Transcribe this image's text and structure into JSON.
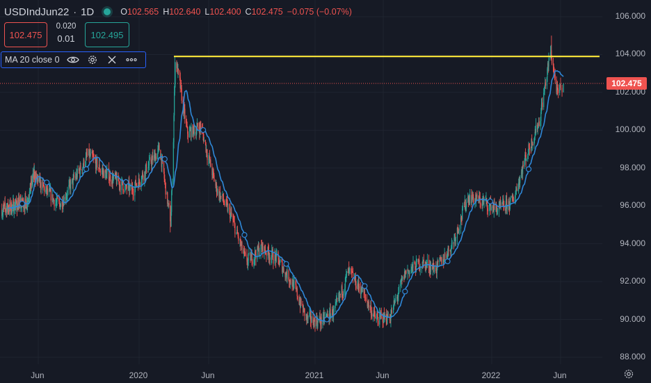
{
  "header": {
    "symbol": "USDIndJun22",
    "interval": "1D",
    "open_label": "O",
    "open": "102.565",
    "high_label": "H",
    "high": "102.640",
    "low_label": "L",
    "low": "102.400",
    "close_label": "C",
    "close": "102.475",
    "change": "−0.075 (−0.07%)"
  },
  "trade": {
    "sell_price": "102.475",
    "spread_top": "0.020",
    "spread_bottom": "0.01",
    "buy_price": "102.495"
  },
  "indicator": {
    "label": "MA 20 close 0",
    "icons": [
      "eye-icon",
      "gear-icon",
      "close-icon",
      "more-icon"
    ]
  },
  "current_price_tag": "102.475",
  "colors": {
    "background": "#161a25",
    "up": "#26a69a",
    "down": "#ef5350",
    "ma": "#2f88d8",
    "resistance": "#ffeb3b"
  },
  "chart_data": {
    "type": "candlestick",
    "y_ticks": [
      "106.000",
      "104.000",
      "102.000",
      "100.000",
      "98.000",
      "96.000",
      "94.000",
      "92.000",
      "90.000",
      "88.000"
    ],
    "x_ticks": [
      "Jun",
      "2020",
      "Jun",
      "2021",
      "Jun",
      "2022",
      "Jun"
    ],
    "ylim": [
      87.2,
      106.7
    ],
    "resistance_level": 103.9,
    "current_price": 102.475,
    "key_points": [
      {
        "date": "2019-04",
        "price": 96.2
      },
      {
        "date": "2019-05",
        "price": 97.7
      },
      {
        "date": "2019-07",
        "price": 96.0
      },
      {
        "date": "2019-09",
        "price": 98.7
      },
      {
        "date": "2019-10",
        "price": 97.8
      },
      {
        "date": "2019-12",
        "price": 96.8
      },
      {
        "date": "2020-02",
        "price": 99.0
      },
      {
        "date": "2020-03-10",
        "price": 95.0
      },
      {
        "date": "2020-03-20",
        "price": 103.9
      },
      {
        "date": "2020-04",
        "price": 99.8
      },
      {
        "date": "2020-05",
        "price": 100.2
      },
      {
        "date": "2020-06",
        "price": 97.0
      },
      {
        "date": "2020-07",
        "price": 95.5
      },
      {
        "date": "2020-08",
        "price": 93.0
      },
      {
        "date": "2020-09",
        "price": 93.8
      },
      {
        "date": "2020-10",
        "price": 93.2
      },
      {
        "date": "2020-11",
        "price": 92.0
      },
      {
        "date": "2020-12",
        "price": 90.0
      },
      {
        "date": "2021-01",
        "price": 89.9
      },
      {
        "date": "2021-02",
        "price": 90.5
      },
      {
        "date": "2021-03",
        "price": 92.5
      },
      {
        "date": "2021-04",
        "price": 91.5
      },
      {
        "date": "2021-05",
        "price": 90.0
      },
      {
        "date": "2021-06",
        "price": 90.2
      },
      {
        "date": "2021-07",
        "price": 92.5
      },
      {
        "date": "2021-08",
        "price": 93.0
      },
      {
        "date": "2021-09",
        "price": 92.7
      },
      {
        "date": "2021-10",
        "price": 94.0
      },
      {
        "date": "2021-11",
        "price": 96.5
      },
      {
        "date": "2021-12",
        "price": 96.2
      },
      {
        "date": "2022-01",
        "price": 95.8
      },
      {
        "date": "2022-02",
        "price": 96.2
      },
      {
        "date": "2022-03",
        "price": 98.5
      },
      {
        "date": "2022-04",
        "price": 100.5
      },
      {
        "date": "2022-05-10",
        "price": 104.2
      },
      {
        "date": "2022-05-25",
        "price": 101.8
      },
      {
        "date": "2022-06-05",
        "price": 102.475
      }
    ],
    "ma_period": 20
  }
}
